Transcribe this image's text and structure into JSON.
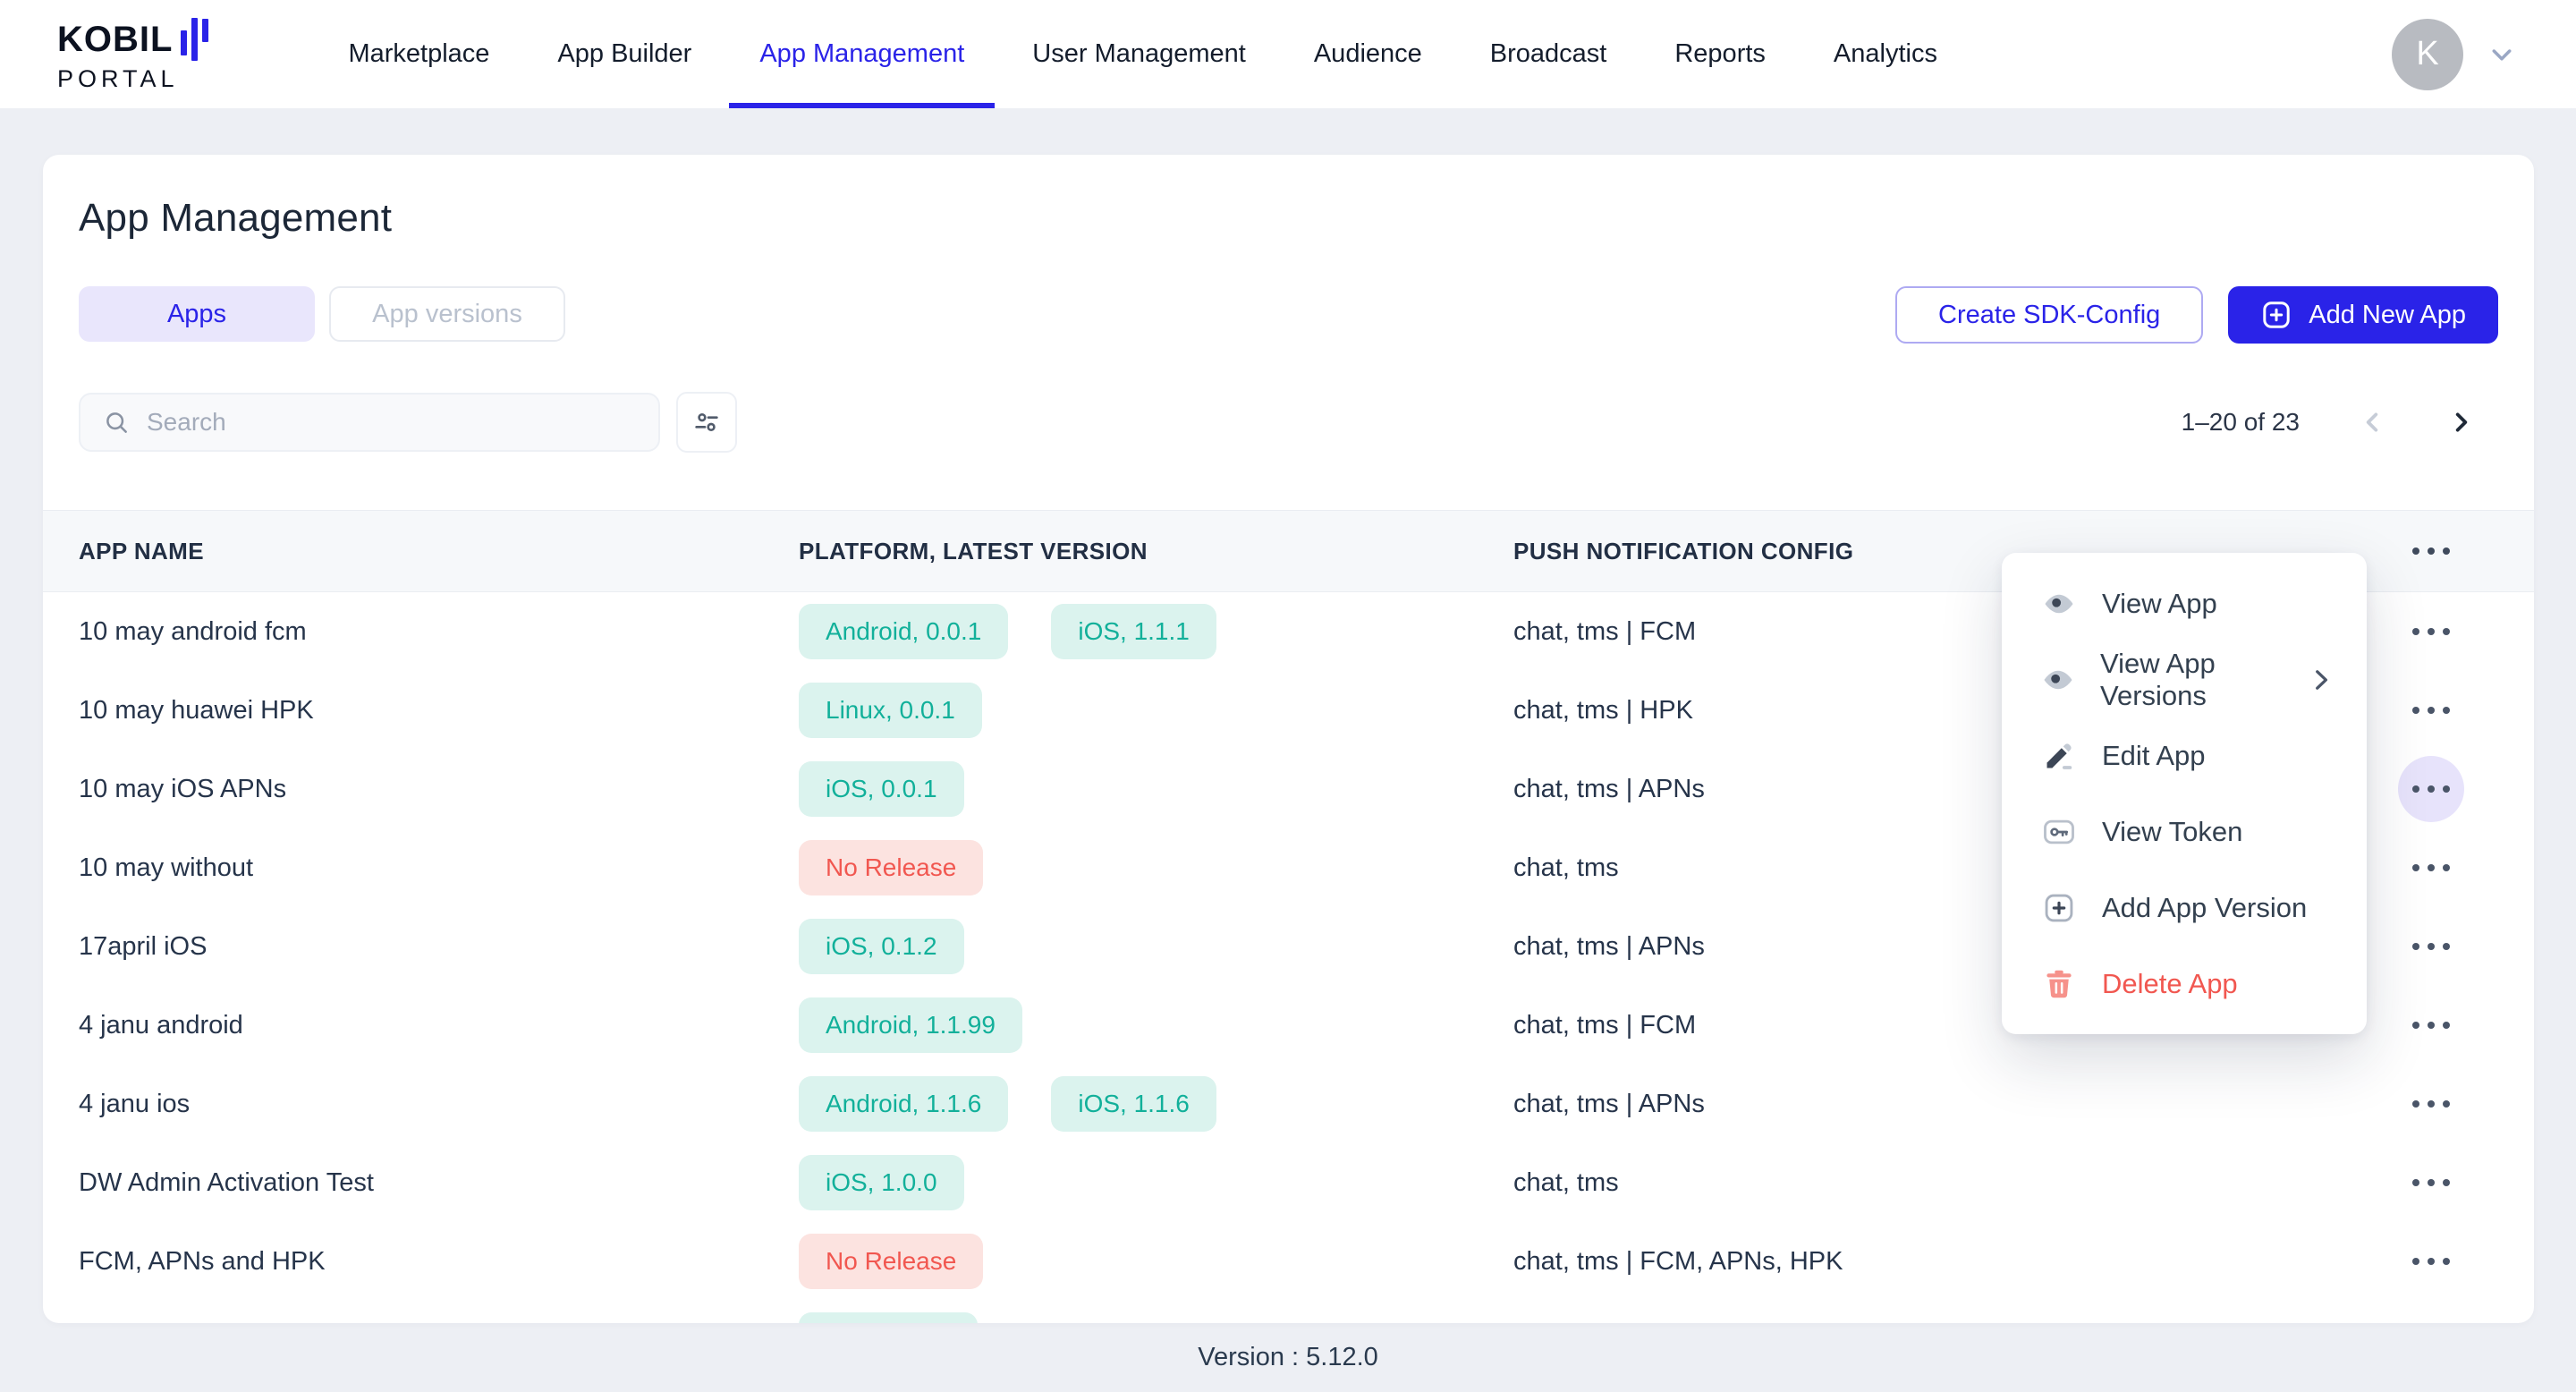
{
  "nav": {
    "logo": {
      "line1": "KOBIL",
      "line2": "PORTAL"
    },
    "items": [
      {
        "label": "Marketplace",
        "active": false
      },
      {
        "label": "App Builder",
        "active": false
      },
      {
        "label": "App Management",
        "active": true
      },
      {
        "label": "User Management",
        "active": false
      },
      {
        "label": "Audience",
        "active": false
      },
      {
        "label": "Broadcast",
        "active": false
      },
      {
        "label": "Reports",
        "active": false
      },
      {
        "label": "Analytics",
        "active": false
      }
    ],
    "avatar_initial": "K"
  },
  "page": {
    "title": "App Management",
    "tabs": [
      {
        "label": "Apps",
        "active": true
      },
      {
        "label": "App versions",
        "active": false
      }
    ],
    "buttons": {
      "create_sdk": "Create SDK-Config",
      "add_new_app": "Add New App"
    },
    "search": {
      "placeholder": "Search"
    },
    "pagination": {
      "range": "1–20 of 23"
    },
    "table": {
      "columns": [
        "APP NAME",
        "PLATFORM, LATEST VERSION",
        "PUSH NOTIFICATION CONFIG"
      ],
      "rows": [
        {
          "name": "10 may android fcm",
          "badges": [
            {
              "label": "Android, 0.0.1",
              "type": "release"
            },
            {
              "label": "iOS, 1.1.1",
              "type": "release"
            }
          ],
          "push": "chat, tms | FCM",
          "menu_open": false,
          "partial": false
        },
        {
          "name": "10 may huawei HPK",
          "badges": [
            {
              "label": "Linux, 0.0.1",
              "type": "release"
            }
          ],
          "push": "chat, tms | HPK",
          "menu_open": false,
          "partial": false
        },
        {
          "name": "10 may iOS APNs",
          "badges": [
            {
              "label": "iOS, 0.0.1",
              "type": "release"
            }
          ],
          "push": "chat, tms | APNs",
          "menu_open": true,
          "partial": false
        },
        {
          "name": "10 may without",
          "badges": [
            {
              "label": "No Release",
              "type": "none"
            }
          ],
          "push": "chat, tms",
          "menu_open": false,
          "partial": false
        },
        {
          "name": "17april iOS",
          "badges": [
            {
              "label": "iOS, 0.1.2",
              "type": "release"
            }
          ],
          "push": "chat, tms | APNs",
          "menu_open": false,
          "partial": false
        },
        {
          "name": "4 janu android",
          "badges": [
            {
              "label": "Android, 1.1.99",
              "type": "release"
            }
          ],
          "push": "chat, tms | FCM",
          "menu_open": false,
          "partial": false
        },
        {
          "name": "4 janu ios",
          "badges": [
            {
              "label": "Android, 1.1.6",
              "type": "release"
            },
            {
              "label": "iOS, 1.1.6",
              "type": "release"
            }
          ],
          "push": "chat, tms | APNs",
          "menu_open": false,
          "partial": false
        },
        {
          "name": "DW Admin Activation Test",
          "badges": [
            {
              "label": "iOS, 1.0.0",
              "type": "release"
            }
          ],
          "push": "chat, tms",
          "menu_open": false,
          "partial": false
        },
        {
          "name": "FCM, APNs and HPK",
          "badges": [
            {
              "label": "No Release",
              "type": "none"
            }
          ],
          "push": "chat, tms | FCM, APNs, HPK",
          "menu_open": false,
          "partial": false
        },
        {
          "name": "",
          "badges": [
            {
              "label": "",
              "type": "release"
            }
          ],
          "push": "",
          "menu_open": false,
          "partial": true
        }
      ]
    },
    "context_menu": {
      "items": [
        {
          "label": "View App",
          "icon": "eye-icon",
          "submenu": false,
          "danger": false
        },
        {
          "label": "View App Versions",
          "icon": "eye-icon",
          "submenu": true,
          "danger": false
        },
        {
          "label": "Edit App",
          "icon": "pencil-icon",
          "submenu": false,
          "danger": false
        },
        {
          "label": "View Token",
          "icon": "key-icon",
          "submenu": false,
          "danger": false
        },
        {
          "label": "Add App Version",
          "icon": "plus-square-icon",
          "submenu": false,
          "danger": false
        },
        {
          "label": "Delete App",
          "icon": "trash-icon",
          "submenu": false,
          "danger": true
        }
      ]
    }
  },
  "footer": {
    "version": "Version : 5.12.0"
  },
  "colors": {
    "accent_blue": "#2a23e8",
    "tab_active_bg": "#e9e6fc",
    "badge_release_bg": "#dbf3ee",
    "badge_release_text": "#12b09a",
    "badge_none_bg": "#fce3e0",
    "badge_none_text": "#f15750",
    "danger_red": "#f15750",
    "page_bg": "#edeff4",
    "header_band_bg": "#f6f8fa",
    "text_dark": "#26344a"
  }
}
